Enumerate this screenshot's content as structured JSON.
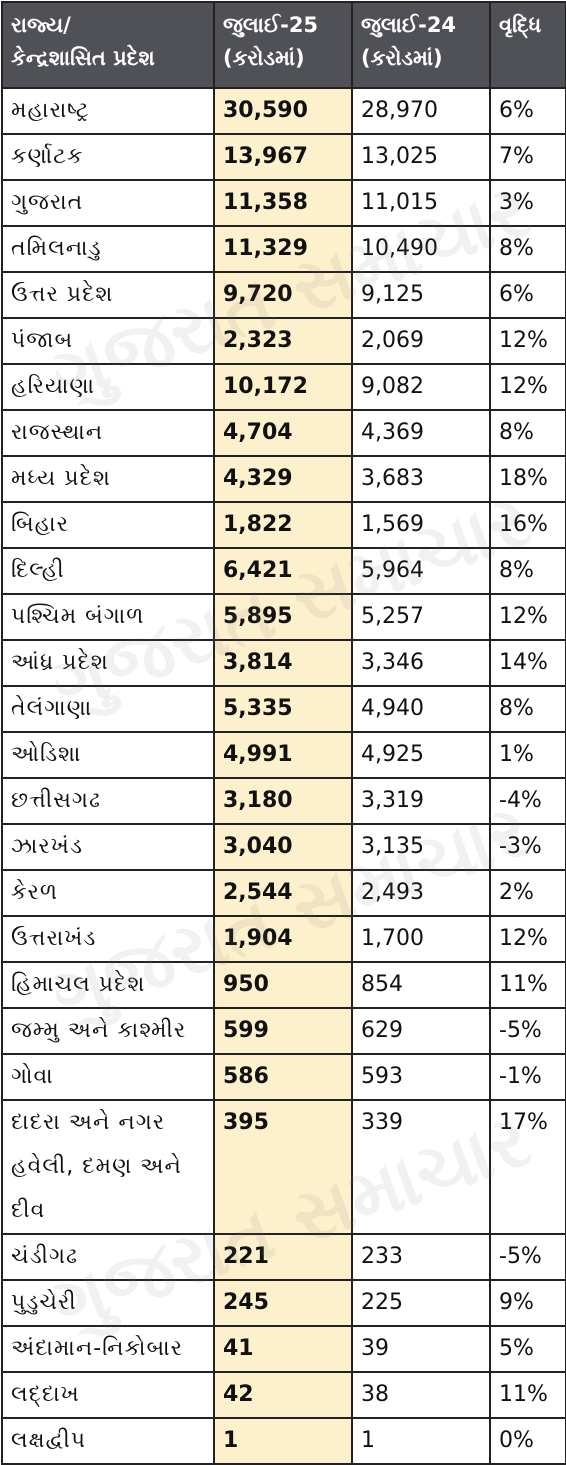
{
  "table": {
    "headers": {
      "state_line1": "રાજ્ય/",
      "state_line2": "કેન્દ્રશાસિત પ્રદેશ",
      "jul25_line1": "જુલાઈ-25",
      "jul25_line2": "(કરોડમાં)",
      "jul24_line1": "જુલાઈ-24",
      "jul24_line2": "(કરોડમાં)",
      "growth": "વૃદ્ધિ"
    },
    "rows": [
      {
        "state": "મહારાષ્ટ્ર",
        "jul25": "30,590",
        "jul24": "28,970",
        "growth": "6%"
      },
      {
        "state": "કર્ણાટક",
        "jul25": "13,967",
        "jul24": "13,025",
        "growth": "7%"
      },
      {
        "state": "ગુજરાત",
        "jul25": "11,358",
        "jul24": "11,015",
        "growth": "3%"
      },
      {
        "state": "તમિલનાડુ",
        "jul25": "11,329",
        "jul24": "10,490",
        "growth": "8%"
      },
      {
        "state": "ઉત્તર પ્રદેશ",
        "jul25": "9,720",
        "jul24": "9,125",
        "growth": "6%"
      },
      {
        "state": "પંજાબ",
        "jul25": "2,323",
        "jul24": "2,069",
        "growth": "12%"
      },
      {
        "state": "હરિયાણા",
        "jul25": "10,172",
        "jul24": "9,082",
        "growth": "12%"
      },
      {
        "state": "રાજસ્થાન",
        "jul25": "4,704",
        "jul24": "4,369",
        "growth": "8%"
      },
      {
        "state": "મધ્ય પ્રદેશ",
        "jul25": "4,329",
        "jul24": "3,683",
        "growth": "18%"
      },
      {
        "state": "બિહાર",
        "jul25": "1,822",
        "jul24": "1,569",
        "growth": "16%"
      },
      {
        "state": "દિલ્હી",
        "jul25": "6,421",
        "jul24": "5,964",
        "growth": "8%"
      },
      {
        "state": "પશ્ચિમ બંગાળ",
        "jul25": "5,895",
        "jul24": "5,257",
        "growth": "12%"
      },
      {
        "state": "આંધ્ર પ્રદેશ",
        "jul25": "3,814",
        "jul24": "3,346",
        "growth": "14%"
      },
      {
        "state": "તેલંગાણા",
        "jul25": "5,335",
        "jul24": "4,940",
        "growth": "8%"
      },
      {
        "state": "ઓડિશા",
        "jul25": "4,991",
        "jul24": "4,925",
        "growth": "1%"
      },
      {
        "state": "છત્તીસગઢ",
        "jul25": "3,180",
        "jul24": "3,319",
        "growth": "-4%"
      },
      {
        "state": "ઝારખંડ",
        "jul25": "3,040",
        "jul24": "3,135",
        "growth": "-3%"
      },
      {
        "state": "કેરળ",
        "jul25": "2,544",
        "jul24": "2,493",
        "growth": "2%"
      },
      {
        "state": "ઉત્તરાખંડ",
        "jul25": "1,904",
        "jul24": "1,700",
        "growth": "12%"
      },
      {
        "state": "હિમાચલ પ્રદેશ",
        "jul25": "950",
        "jul24": "854",
        "growth": "11%"
      },
      {
        "state": "જમ્મુ અને કાશ્મીર",
        "jul25": "599",
        "jul24": "629",
        "growth": "-5%"
      },
      {
        "state": "ગોવા",
        "jul25": "586",
        "jul24": "593",
        "growth": "-1%"
      },
      {
        "state": "દાદરા અને નગર હવેલી, દમણ અને દીવ",
        "jul25": "395",
        "jul24": "339",
        "growth": "17%"
      },
      {
        "state": "ચંડીગઢ",
        "jul25": "221",
        "jul24": "233",
        "growth": "-5%"
      },
      {
        "state": "પુડુચેરી",
        "jul25": "245",
        "jul24": "225",
        "growth": "9%"
      },
      {
        "state": "અંદામાન-નિકોબાર",
        "jul25": "41",
        "jul24": "39",
        "growth": "5%"
      },
      {
        "state": "લદ્દાખ",
        "jul25": "42",
        "jul24": "38",
        "growth": "11%"
      },
      {
        "state": "લક્ષદ્વીપ",
        "jul25": "1",
        "jul24": "1",
        "growth": "0%"
      }
    ]
  },
  "watermark": "ગુજરાત સમાચાર",
  "colors": {
    "header_bg": "#4f5156",
    "header_text": "#ffffff",
    "highlight_col": "#fdf0cc",
    "border": "#222222"
  }
}
